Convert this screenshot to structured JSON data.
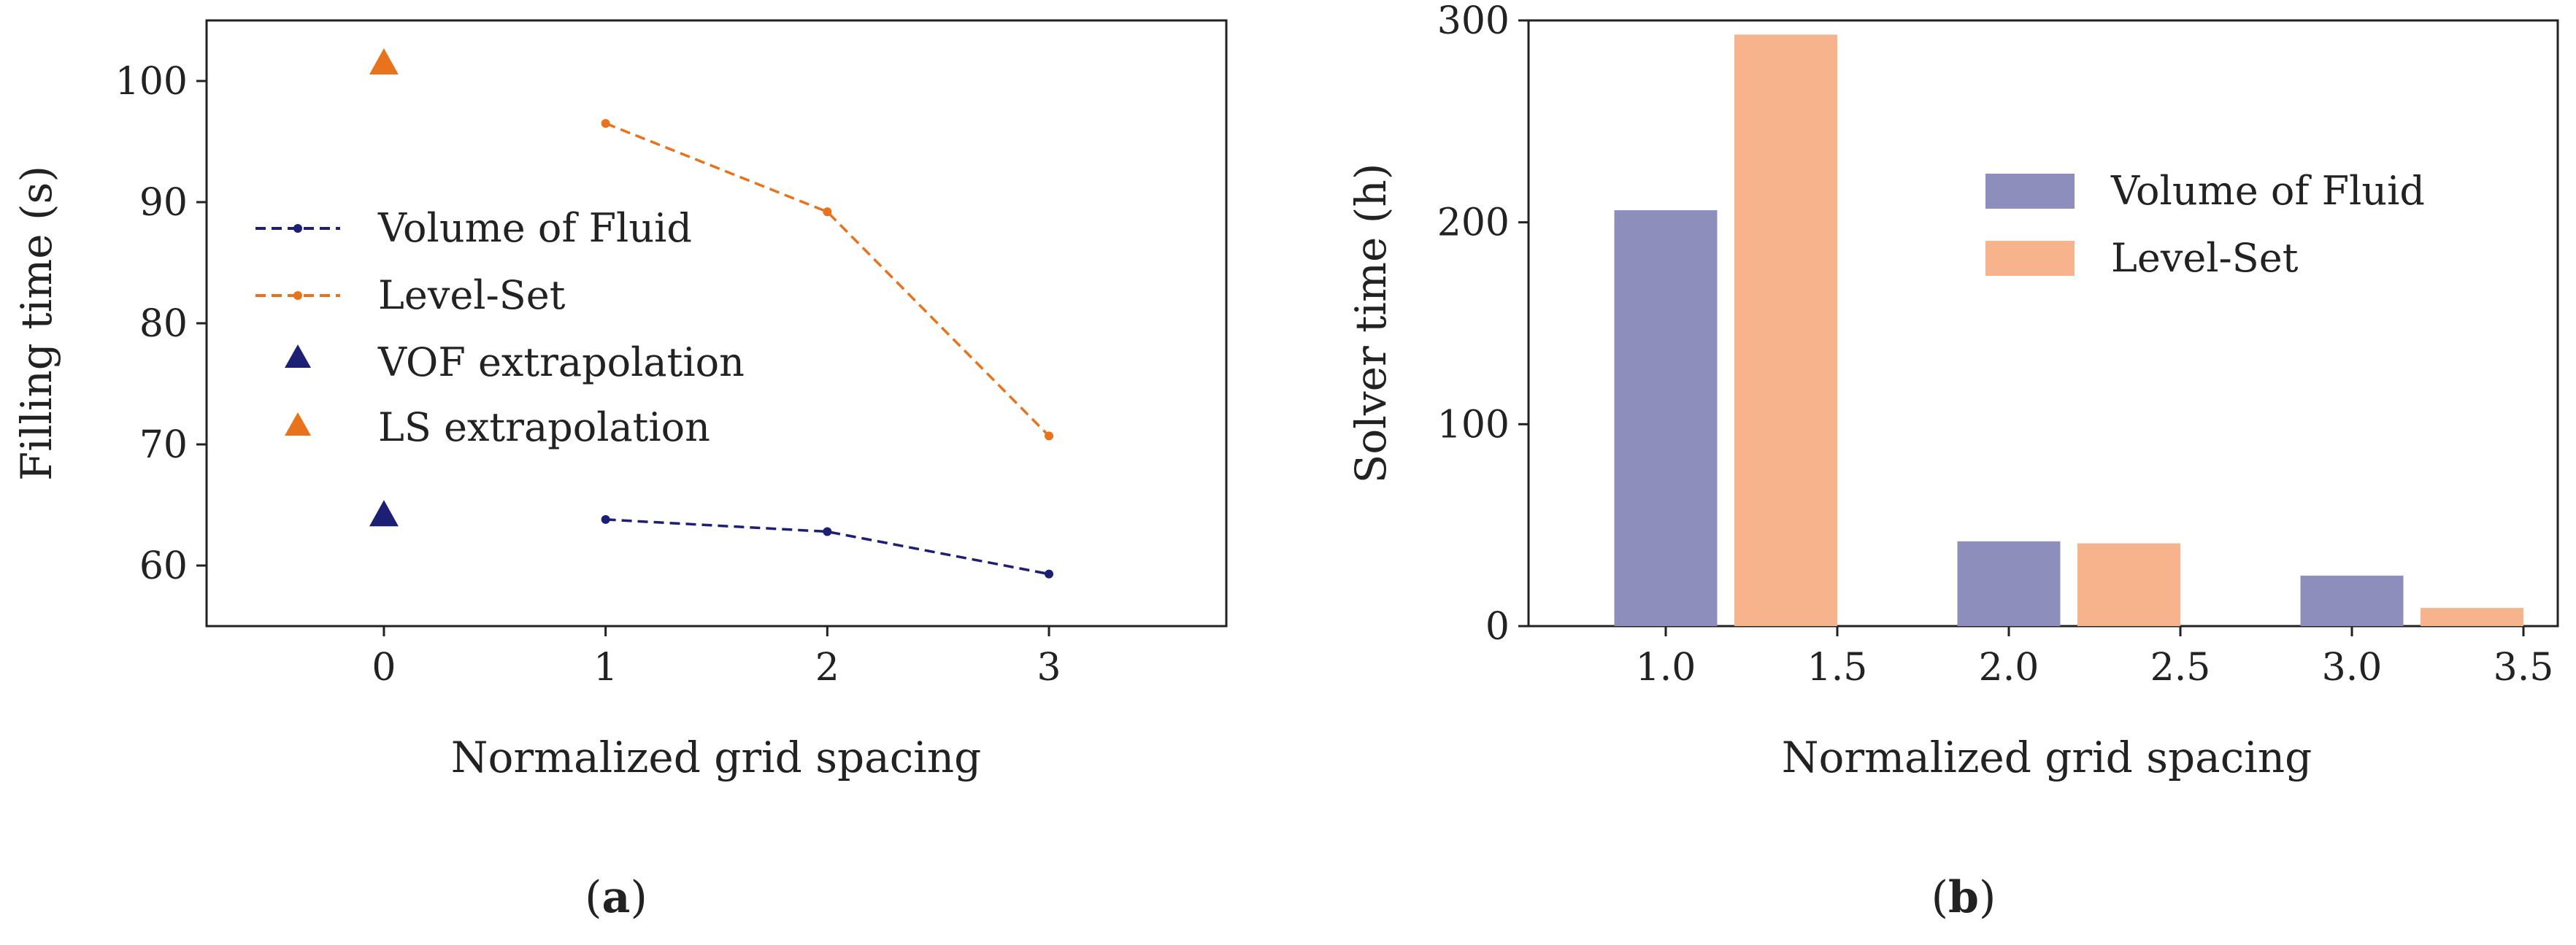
{
  "chart_data": [
    {
      "id": "a",
      "panel_label": "(a)",
      "panel_label_parts": [
        "(",
        "a",
        ")"
      ],
      "type": "line",
      "xlabel": "Normalized grid spacing",
      "ylabel": "Filling time (s)",
      "xlim": [
        -0.8,
        3.8
      ],
      "ylim": [
        55,
        105
      ],
      "xticks": [
        0,
        1,
        2,
        3
      ],
      "yticks": [
        60,
        70,
        80,
        90,
        100
      ],
      "series": [
        {
          "name": "Volume of Fluid",
          "style": "dashed-dot",
          "color": "#1c1f73",
          "x": [
            1,
            2,
            3
          ],
          "y": [
            63.8,
            62.8,
            59.3
          ]
        },
        {
          "name": "Level-Set",
          "style": "dashed-dot",
          "color": "#e8731c",
          "x": [
            1,
            2,
            3
          ],
          "y": [
            96.5,
            89.2,
            70.7
          ]
        },
        {
          "name": "VOF extrapolation",
          "style": "triangle",
          "color": "#1c1f73",
          "x": [
            0
          ],
          "y": [
            64.2
          ]
        },
        {
          "name": "LS extrapolation",
          "style": "triangle",
          "color": "#e8731c",
          "x": [
            0
          ],
          "y": [
            101.5
          ]
        }
      ],
      "legend_position": "center-left"
    },
    {
      "id": "b",
      "panel_label": "(b)",
      "panel_label_parts": [
        "(",
        "b",
        ")"
      ],
      "type": "bar",
      "xlabel": "Normalized grid spacing",
      "ylabel": "Solver time (h)",
      "xlim": [
        0.6,
        3.6
      ],
      "ylim": [
        0,
        300
      ],
      "xticks": [
        1.0,
        1.5,
        2.0,
        2.5,
        3.0,
        3.5
      ],
      "xtick_labels": [
        "1.0",
        "1.5",
        "2.0",
        "2.5",
        "3.0",
        "3.5"
      ],
      "yticks": [
        0,
        100,
        200,
        300
      ],
      "bar_width": 0.3,
      "series": [
        {
          "name": "Volume of Fluid",
          "color": "#8e8ebc",
          "x": [
            1.0,
            2.0,
            3.0
          ],
          "values": [
            206,
            42,
            25
          ]
        },
        {
          "name": "Level-Set",
          "color": "#f7b48c",
          "x": [
            1.35,
            2.35,
            3.35
          ],
          "values": [
            293,
            41,
            9
          ]
        }
      ],
      "legend_position": "upper-center"
    }
  ]
}
